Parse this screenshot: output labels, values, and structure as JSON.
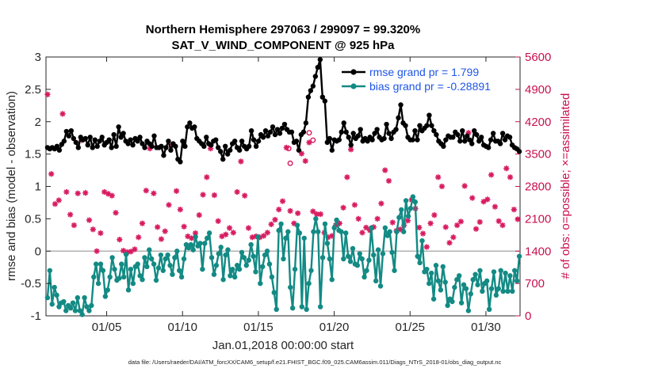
{
  "chart_data": {
    "type": "line",
    "title_line1": "Northern Hemisphere 297063 / 299097 = 99.320%",
    "title_line2": "SAT_V_WIND_COMPONENT @ 925 hPa",
    "ylabel": "rmse and bias (model - observation)",
    "ylabel_right": "# of obs: o=possible; ×=assimilated",
    "xlabel": "Jan.01,2018 00:00:00 start",
    "footer": "data file: /Users/raeder/DAI/ATM_forcXX/CAM6_setup/f.e21.FHIST_BGC.f09_025.CAM6assim.011/Diags_NTrS_2018-01/obs_diag_output.nc",
    "x_range": [
      1,
      32.25
    ],
    "ylim": [
      -1,
      3
    ],
    "ylim_right": [
      0,
      5600
    ],
    "x_ticks": [
      {
        "value": 5,
        "label": "01/05"
      },
      {
        "value": 10,
        "label": "01/10"
      },
      {
        "value": 15,
        "label": "01/15"
      },
      {
        "value": 20,
        "label": "01/20"
      },
      {
        "value": 25,
        "label": "01/25"
      },
      {
        "value": 30,
        "label": "01/30"
      }
    ],
    "y_ticks": [
      {
        "value": -1,
        "label": "-1"
      },
      {
        "value": -0.5,
        "label": "-0.5"
      },
      {
        "value": 0,
        "label": "0"
      },
      {
        "value": 0.5,
        "label": "0.5"
      },
      {
        "value": 1,
        "label": "1"
      },
      {
        "value": 1.5,
        "label": "1.5"
      },
      {
        "value": 2,
        "label": "2"
      },
      {
        "value": 2.5,
        "label": "2.5"
      },
      {
        "value": 3,
        "label": "3"
      }
    ],
    "y_ticks_right": [
      {
        "value": 0,
        "label": "0"
      },
      {
        "value": 700,
        "label": "700"
      },
      {
        "value": 1400,
        "label": "1400"
      },
      {
        "value": 2100,
        "label": "2100"
      },
      {
        "value": 2800,
        "label": "2800"
      },
      {
        "value": 3500,
        "label": "3500"
      },
      {
        "value": 4200,
        "label": "4200"
      },
      {
        "value": 4900,
        "label": "4900"
      },
      {
        "value": 5600,
        "label": "5600"
      }
    ],
    "colors": {
      "rmse": "#000000",
      "bias": "#138a84",
      "obs": "#d81b60",
      "zero_line": "#b3b3b3",
      "legend_text": "#1f55e6",
      "right_axis": "#c8104f"
    },
    "series": [
      {
        "name": "rmse grand pr = 1.799",
        "values": [
          1.6,
          1.58,
          1.6,
          1.58,
          1.62,
          1.56,
          1.65,
          1.7,
          1.85,
          1.78,
          1.86,
          1.74,
          1.68,
          1.6,
          1.76,
          1.72,
          1.74,
          1.64,
          1.76,
          1.6,
          1.72,
          1.62,
          1.7,
          1.76,
          1.64,
          1.68,
          1.72,
          1.6,
          1.8,
          1.62,
          1.92,
          1.76,
          1.82,
          1.7,
          1.66,
          1.72,
          1.64,
          1.74,
          1.7,
          1.76,
          1.66,
          1.6,
          1.7,
          1.66,
          1.62,
          1.78,
          1.6,
          1.6,
          1.62,
          1.48,
          1.6,
          1.7,
          1.56,
          1.66,
          1.62,
          1.42,
          1.38,
          1.7,
          1.62,
          1.92,
          1.98,
          1.9,
          1.92,
          1.74,
          1.7,
          1.66,
          1.62,
          1.76,
          1.66,
          1.64,
          1.7,
          1.72,
          1.6,
          1.54,
          1.42,
          1.62,
          1.5,
          1.56,
          1.66,
          1.7,
          1.6,
          1.56,
          1.7,
          1.62,
          1.58,
          1.62,
          1.86,
          1.72,
          1.62,
          1.7,
          1.8,
          1.76,
          1.86,
          1.78,
          1.84,
          1.92,
          1.8,
          1.88,
          1.82,
          1.9,
          1.96,
          1.88,
          1.84,
          1.84,
          1.68,
          1.7,
          1.56,
          1.8,
          1.84,
          1.98,
          2.38,
          2.48,
          2.55,
          2.7,
          2.84,
          2.96,
          2.38,
          2.32,
          1.68,
          1.74,
          1.56,
          1.72,
          1.7,
          1.72,
          1.84,
          1.98,
          1.84,
          1.76,
          1.64,
          1.82,
          1.74,
          1.78,
          1.88,
          1.7,
          1.74,
          1.7,
          1.76,
          1.72,
          1.82,
          1.88,
          1.76,
          1.72,
          1.74,
          1.96,
          1.82,
          1.74,
          1.84,
          1.88,
          2.06,
          2.26,
          1.98,
          1.94,
          1.76,
          1.72,
          1.72,
          1.86,
          1.72,
          1.94,
          1.86,
          1.9,
          1.94,
          2.1,
          1.94,
          1.86,
          1.8,
          1.7,
          1.66,
          1.62,
          1.72,
          1.78,
          1.76,
          1.76,
          1.84,
          1.8,
          1.7,
          1.86,
          1.7,
          1.78,
          1.72,
          1.66,
          1.86,
          1.8,
          1.7,
          1.76,
          1.64,
          1.62,
          1.6,
          1.72,
          1.82,
          1.7,
          1.7,
          1.66,
          1.82,
          1.72,
          1.78,
          1.76,
          1.64,
          1.6,
          1.58,
          1.54
        ]
      },
      {
        "name": "bias grand pr = -0.28891",
        "values": [
          -0.72,
          -0.3,
          -0.82,
          -0.56,
          -0.68,
          -0.86,
          -0.8,
          -0.78,
          -0.92,
          -0.84,
          -0.88,
          -0.8,
          -0.92,
          -0.72,
          -0.92,
          -0.98,
          -0.72,
          -0.86,
          -0.92,
          -0.84,
          -0.4,
          -0.2,
          -0.5,
          -0.2,
          -0.3,
          -0.7,
          -0.6,
          -0.4,
          -0.1,
          -0.28,
          -0.45,
          -0.42,
          -0.2,
          -0.4,
          -0.05,
          -0.6,
          -0.28,
          -0.5,
          -0.24,
          -0.2,
          -0.38,
          -0.44,
          -0.1,
          -0.24,
          0.02,
          -0.12,
          -0.2,
          -0.45,
          -0.26,
          -0.06,
          -0.3,
          -0.12,
          -0.06,
          -0.22,
          -0.36,
          -0.1,
          0,
          -0.3,
          -0.4,
          -0.12,
          0.1,
          0.05,
          0.1,
          0.02,
          0.22,
          0.08,
          0.12,
          -0.28,
          0.12,
          0.2,
          0.28,
          -0.1,
          -0.36,
          -0.22,
          -0.04,
          0.06,
          -0.44,
          -0.06,
          0.02,
          -0.38,
          -0.28,
          -0.4,
          -0.22,
          -0.28,
          -0.02,
          -0.1,
          -0.22,
          -0.14,
          0.1,
          -0.08,
          -0.32,
          0.22,
          -0.5,
          -0.24,
          -0.06,
          0.0,
          -0.2,
          -0.4,
          -0.64,
          -0.9,
          0.32,
          0.42,
          -0.12,
          0.2,
          0.3,
          -0.56,
          -0.88,
          -0.28,
          0.4,
          0.28,
          -0.86,
          0.2,
          -0.9,
          -0.5,
          -0.3,
          0.3,
          0.5,
          0.3,
          -0.86,
          -0.1,
          0.42,
          0.12,
          -0.12,
          -0.44,
          0.36,
          0.48,
          0.32,
          0.3,
          -0.12,
          0.28,
          -0.08,
          -0.16,
          0.04,
          -0.2,
          -0.22,
          -0.04,
          -0.12,
          -0.4,
          -0.3,
          -0.14,
          0.36,
          -0.06,
          -0.46,
          0.02,
          -0.54,
          -0.04,
          0.36,
          0.24,
          0.3,
          -0.02,
          -0.3,
          0.3,
          0.52,
          0.64,
          0.3,
          0.78,
          0.54,
          0.66,
          0.84,
          0.76,
          -0.08,
          -0.18,
          0.16,
          -0.32,
          -0.28,
          -0.5,
          -0.34,
          -0.74,
          -0.22,
          -0.46,
          -0.6,
          -0.24,
          -0.48,
          -0.84,
          -0.74,
          -0.78,
          -0.56,
          -0.44,
          -0.38,
          -0.8,
          -0.52,
          -0.58,
          -0.92,
          -0.66,
          -0.44,
          -0.36,
          -0.52,
          -0.3,
          -0.62,
          -0.5,
          -0.46,
          -0.9,
          -0.58,
          -0.32,
          -0.68,
          -0.58,
          -0.3,
          -0.62,
          -0.34,
          -0.62,
          -0.38,
          -0.62,
          -0.3,
          -0.46,
          -0.08
        ]
      },
      {
        "name": "obs assimilated",
        "axis": "right",
        "x": [
          1.1,
          1.35,
          1.6,
          1.85,
          2.1,
          2.35,
          2.6,
          2.85,
          3.1,
          3.35,
          3.6,
          3.85,
          4.1,
          4.35,
          4.6,
          4.85,
          5.1,
          5.35,
          5.6,
          5.85,
          6.1,
          6.35,
          6.6,
          6.85,
          7.1,
          7.35,
          7.6,
          7.85,
          8.1,
          8.35,
          8.6,
          8.85,
          9.1,
          9.35,
          9.6,
          9.85,
          10.1,
          10.35,
          10.6,
          10.85,
          11.1,
          11.35,
          11.6,
          11.85,
          12.1,
          12.35,
          12.6,
          12.85,
          13.1,
          13.35,
          13.6,
          13.85,
          14.1,
          14.35,
          14.6,
          14.85,
          15.1,
          15.35,
          15.6,
          15.85,
          16.1,
          16.35,
          16.6,
          16.85,
          17.1,
          17.35,
          17.6,
          17.85,
          18.1,
          18.35,
          18.6,
          18.85,
          19.1,
          19.35,
          19.6,
          19.85,
          20.1,
          20.35,
          20.6,
          20.85,
          21.1,
          21.35,
          21.6,
          21.85,
          22.1,
          22.35,
          22.6,
          22.85,
          23.1,
          23.35,
          23.6,
          23.85,
          24.1,
          24.35,
          24.6,
          24.85,
          25.1,
          25.35,
          25.6,
          25.85,
          26.1,
          26.35,
          26.6,
          26.85,
          27.1,
          27.35,
          27.6,
          27.85,
          28.1,
          28.35,
          28.6,
          28.85,
          29.1,
          29.35,
          29.6,
          29.85,
          30.1,
          30.35,
          30.6,
          30.85,
          31.1,
          31.35,
          31.6,
          31.85,
          32.1
        ],
        "values": [
          4790,
          3070,
          2420,
          2500,
          4370,
          2680,
          2190,
          1960,
          2650,
          3800,
          2660,
          2070,
          1870,
          1400,
          1790,
          2680,
          2640,
          2600,
          2230,
          1650,
          1410,
          1380,
          1390,
          1440,
          1700,
          2000,
          2710,
          3620,
          2650,
          1920,
          1660,
          1830,
          2400,
          3710,
          2700,
          2300,
          1930,
          1720,
          1680,
          1790,
          2180,
          2620,
          3000,
          3620,
          2610,
          2050,
          1720,
          1760,
          1900,
          1800,
          2680,
          3340,
          2600,
          1900,
          1700,
          1720,
          1700,
          1730,
          1800,
          1980,
          2080,
          2300,
          2480,
          3640,
          2270,
          2000,
          2220,
          3510,
          3350,
          3750,
          2260,
          2200,
          2200,
          1800,
          1700,
          1730,
          1960,
          2000,
          2340,
          3000,
          3600,
          2400,
          2100,
          1800,
          1910,
          1850,
          1920,
          2100,
          2430,
          3150,
          2920,
          2020,
          1840,
          1870,
          1960,
          2060,
          2510,
          2320,
          1910,
          1780,
          1490,
          2000,
          2180,
          3000,
          2800,
          1920,
          1580,
          1700,
          1960,
          2040,
          2810,
          3960,
          2550,
          1880,
          2030,
          2470,
          2520,
          3050,
          2360,
          2050,
          1960,
          3190,
          3000,
          2300,
          2090
        ]
      }
    ],
    "open_markers": [
      {
        "x": 17.0,
        "value": 3620
      },
      {
        "x": 18.35,
        "value": 3960
      },
      {
        "x": 18.6,
        "value": 3800
      },
      {
        "x": 17.1,
        "value": 3300
      }
    ],
    "legend": {
      "placement": "top-right",
      "entries": [
        "rmse grand pr = 1.799",
        "bias grand pr = -0.28891"
      ]
    }
  }
}
